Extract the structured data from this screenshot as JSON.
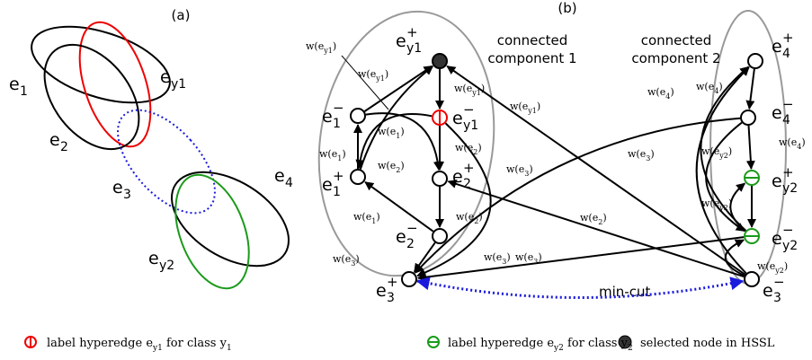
{
  "panels": {
    "a": "(a)",
    "b": "(b)"
  },
  "hyperedges": [
    {
      "base": "e",
      "sub": "1"
    },
    {
      "base": "e",
      "sub": "2"
    },
    {
      "base": "e",
      "sub": "y1"
    },
    {
      "base": "e",
      "sub": "3"
    },
    {
      "base": "e",
      "sub": "4"
    },
    {
      "base": "e",
      "sub": "y2"
    }
  ],
  "nodes": [
    {
      "base": "e",
      "sub": "y1",
      "sup": "+"
    },
    {
      "base": "e",
      "sub": "y1",
      "sup": "−"
    },
    {
      "base": "e",
      "sub": "2",
      "sup": "+"
    },
    {
      "base": "e",
      "sub": "2",
      "sup": "−"
    },
    {
      "base": "e",
      "sub": "1",
      "sup": "−"
    },
    {
      "base": "e",
      "sub": "1",
      "sup": "+"
    },
    {
      "base": "e",
      "sub": "3",
      "sup": "+"
    },
    {
      "base": "e",
      "sub": "4",
      "sup": "+"
    },
    {
      "base": "e",
      "sub": "4",
      "sup": "−"
    },
    {
      "base": "e",
      "sub": "y2",
      "sup": "+"
    },
    {
      "base": "e",
      "sub": "y2",
      "sup": "−"
    },
    {
      "base": "e",
      "sub": "3",
      "sup": "−"
    }
  ],
  "edge_labels": [
    {
      "pre": "w(e",
      "sub": "y1",
      "post": ")"
    },
    {
      "pre": "w(e",
      "sub": "y1",
      "post": ")"
    },
    {
      "pre": "w(e",
      "sub": "y1",
      "post": ")"
    },
    {
      "pre": "w(e",
      "sub": "y1",
      "post": ")"
    },
    {
      "pre": "w(e",
      "sub": "1",
      "post": ")"
    },
    {
      "pre": "w(e",
      "sub": "1",
      "post": ")"
    },
    {
      "pre": "w(e",
      "sub": "2",
      "post": ")"
    },
    {
      "pre": "w(e",
      "sub": "2",
      "post": ")"
    },
    {
      "pre": "w(e",
      "sub": "3",
      "post": ")"
    },
    {
      "pre": "w(e",
      "sub": "1",
      "post": ")"
    },
    {
      "pre": "w(e",
      "sub": "2",
      "post": ")"
    },
    {
      "pre": "w(e",
      "sub": "3",
      "post": ")"
    },
    {
      "pre": "w(e",
      "sub": "3",
      "post": ")"
    },
    {
      "pre": "w(e",
      "sub": "2",
      "post": ")"
    },
    {
      "pre": "w(e",
      "sub": "3",
      "post": ")"
    },
    {
      "pre": "w(e",
      "sub": "3",
      "post": ")"
    },
    {
      "pre": "w(e",
      "sub": "4",
      "post": ")"
    },
    {
      "pre": "w(e",
      "sub": "4",
      "post": ")"
    },
    {
      "pre": "w(e",
      "sub": "y2",
      "post": ")"
    },
    {
      "pre": "w(e",
      "sub": "4",
      "post": ")"
    },
    {
      "pre": "w(e",
      "sub": "y2",
      "post": ")"
    },
    {
      "pre": "w(e",
      "sub": "y2",
      "post": ")"
    }
  ],
  "components": [
    [
      "connected",
      "component 1"
    ],
    [
      "connected",
      "component 2"
    ]
  ],
  "cut_label": "min-cut",
  "legend": [
    [
      {
        "text": "label hyperedge e"
      },
      {
        "sub": "y1"
      },
      {
        "text": " for class y"
      },
      {
        "sub": "1"
      }
    ],
    [
      {
        "text": "label hyperedge e"
      },
      {
        "sub": "y2"
      },
      {
        "text": " for class y"
      },
      {
        "sub": "2"
      }
    ],
    [
      {
        "text": "selected node in HSSL"
      }
    ]
  ]
}
